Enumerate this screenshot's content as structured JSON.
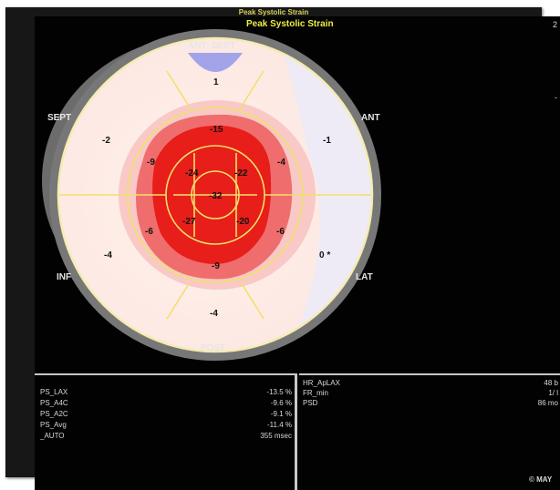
{
  "back_window": {
    "title": "Peak Systolic Strain"
  },
  "window": {
    "title": "Peak Systolic Strain",
    "header_right": [
      "2",
      "-"
    ]
  },
  "bullseye": {
    "labels": {
      "ant_sept": "ANT_SEPT",
      "ant": "ANT",
      "lat": "LAT",
      "post": "POST",
      "inf": "INF",
      "sept": "SEPT"
    },
    "segment_values": {
      "ant_sept_basal": "1",
      "sept_basal": "-2",
      "ant_basal": "-1",
      "inf_basal": "-4",
      "lat_basal": "0 *",
      "post_basal": "-4",
      "ant_sept_mid": "-15",
      "sept_mid": "-9",
      "ant_mid": "-4",
      "inf_mid": "-6",
      "lat_mid": "-6",
      "post_mid": "-9",
      "apex_ant_sept": "-24",
      "apex_ant": "-22",
      "apex_inf": "-27",
      "apex_lat": "-20",
      "apex_center": "-32"
    }
  },
  "left_panel": {
    "rows": [
      {
        "label": "PS_LAX",
        "value": "-13.5 %"
      },
      {
        "label": "PS_A4C",
        "value": "-9.6 %"
      },
      {
        "label": "PS_A2C",
        "value": "-9.1 %"
      },
      {
        "label": "PS_Avg",
        "value": "-11.4 %"
      },
      {
        "label": "_AUTO",
        "value": "355 msec"
      }
    ]
  },
  "right_panel": {
    "rows": [
      {
        "label": "HR_ApLAX",
        "value": "48 b"
      },
      {
        "label": "FR_min",
        "value": "1/ l"
      },
      {
        "label": "PSD",
        "value": "86 mo"
      }
    ],
    "footer": "© MAY"
  },
  "colors": {
    "background": "#020202",
    "title": "#eeee44",
    "ring": "#7a7a7a",
    "segment_border": "#f3e06a",
    "strain_low": "#fdeee8",
    "strain_mid": "#f07a78",
    "strain_high": "#e81212",
    "positive_strain": "#9f9fe8"
  }
}
